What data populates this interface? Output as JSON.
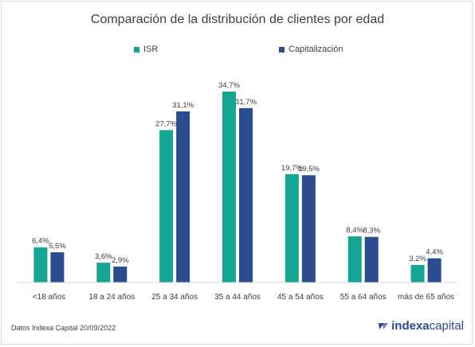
{
  "chart_data": {
    "type": "bar",
    "title": "Comparación de la distribución de clientes por edad",
    "categories": [
      "<18 años",
      "18 a 24 años",
      "25 a 34 años",
      "35 a 44 años",
      "45 a 54 años",
      "55 a 64 años",
      "más de 65 años"
    ],
    "series": [
      {
        "name": "ISR",
        "color": "#14a593",
        "values": [
          6.4,
          3.6,
          27.7,
          34.7,
          19.7,
          8.4,
          3.2
        ],
        "labels": [
          "6,4%",
          "3,6%",
          "27,7%",
          "34,7%",
          "19,7%",
          "8,4%",
          "3,2%"
        ]
      },
      {
        "name": "Capitalización",
        "color": "#2a4b8d",
        "values": [
          5.5,
          2.9,
          31.1,
          31.7,
          19.5,
          8.3,
          4.4
        ],
        "labels": [
          "5,5%",
          "2,9%",
          "31,1%",
          "31,7%",
          "19,5%",
          "8,3%",
          "4,4%"
        ]
      }
    ],
    "ylim": [
      0,
      35
    ],
    "grid": false,
    "legend_position": "top-center"
  },
  "footer": {
    "source": "Datos Indexa Capital 20/09/2022",
    "logo_bold": "indexa",
    "logo_regular": "capital"
  }
}
